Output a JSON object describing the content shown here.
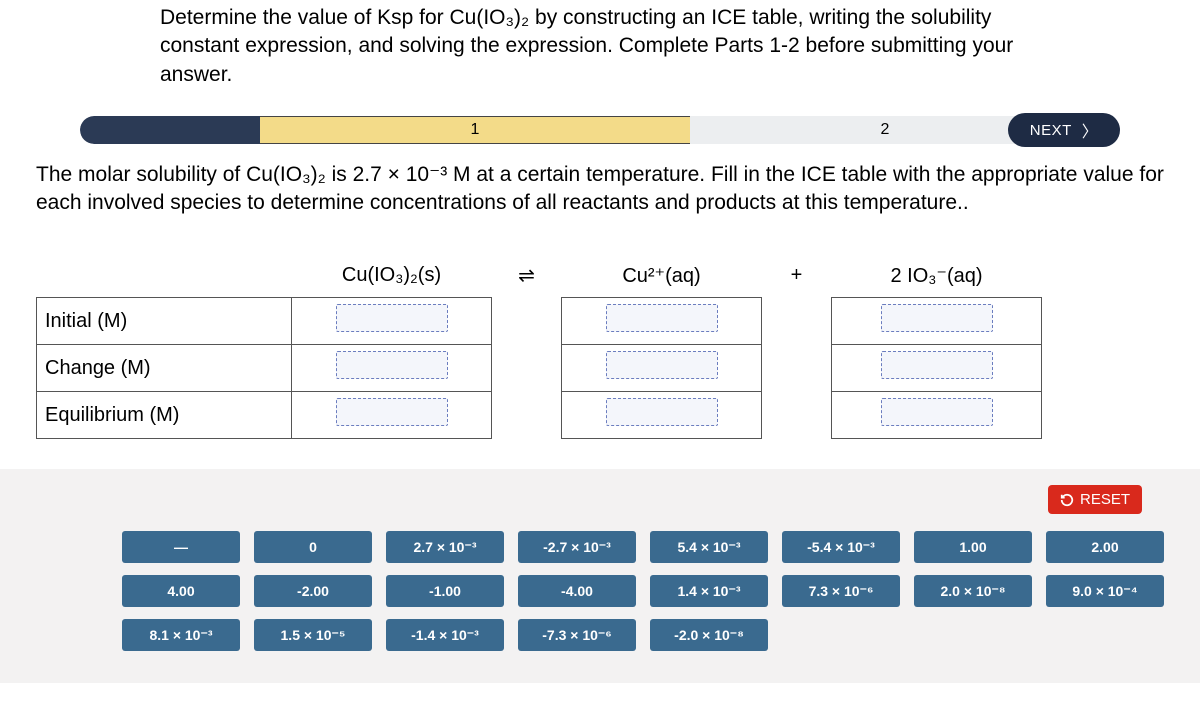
{
  "instructions": "Determine the value of Ksp for Cu(IO₃)₂ by constructing an ICE table, writing the solubility constant expression, and solving the expression. Complete Parts 1-2 before submitting your answer.",
  "progress": {
    "current_label": "1",
    "next_label": "2",
    "next_button": "NEXT",
    "colors": {
      "done": "#2b3a55",
      "current": "#f3db89",
      "upcoming": "#eceef0",
      "next_btn": "#1e2b44"
    }
  },
  "sub_instructions": "The molar solubility of Cu(IO₃)₂ is 2.7 × 10⁻³ M at a certain temperature. Fill in the ICE table with the appropriate value for each involved species to determine concentrations of all reactants and products at this temperature..",
  "table": {
    "headers": {
      "species1": "Cu(IO₃)₂(s)",
      "arrow": "⇌",
      "species2": "Cu²⁺(aq)",
      "plus": "+",
      "species3": "2 IO₃⁻(aq)"
    },
    "rows": [
      "Initial (M)",
      "Change (M)",
      "Equilibrium (M)"
    ]
  },
  "reset_label": "RESET",
  "tiles": [
    [
      "—",
      "0",
      "2.7 × 10⁻³",
      "-2.7 × 10⁻³",
      "5.4 × 10⁻³",
      "-5.4 × 10⁻³",
      "1.00",
      "2.00"
    ],
    [
      "4.00",
      "-2.00",
      "-1.00",
      "-4.00",
      "1.4 × 10⁻³",
      "7.3 × 10⁻⁶",
      "2.0 × 10⁻⁸",
      "9.0 × 10⁻⁴"
    ],
    [
      "8.1 × 10⁻³",
      "1.5 × 10⁻⁵",
      "-1.4 × 10⁻³",
      "-7.3 × 10⁻⁶",
      "-2.0 × 10⁻⁸"
    ]
  ],
  "tile_color": "#3a6a8f",
  "reset_color": "#d9291c"
}
